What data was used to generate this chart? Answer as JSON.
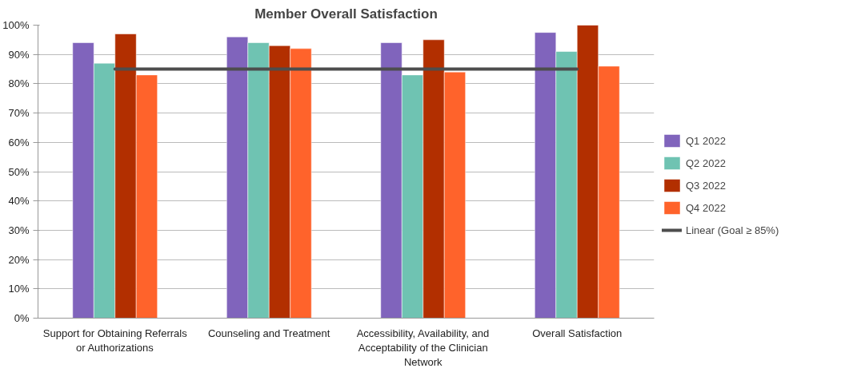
{
  "chart_data": {
    "type": "bar",
    "title": "Member Overall Satisfaction",
    "categories": [
      "Support for Obtaining Referrals or Authorizations",
      "Counseling and Treatment",
      "Accessibility, Availability, and Acceptability of the Clinician Network",
      "Overall Satisfaction"
    ],
    "series": [
      {
        "name": "Q1 2022",
        "color": "#8064bc",
        "values": [
          94,
          96,
          94,
          97.5
        ]
      },
      {
        "name": "Q2 2022",
        "color": "#6fc3b2",
        "values": [
          87,
          94,
          83,
          91
        ]
      },
      {
        "name": "Q3 2022",
        "color": "#b22f00",
        "values": [
          97,
          93,
          95,
          100
        ]
      },
      {
        "name": "Q4 2022",
        "color": "#ff632b",
        "values": [
          83,
          92,
          84,
          86
        ]
      },
      {
        "name": "Linear (Goal ≥ 85%)",
        "type": "line",
        "color": "#4d4d4d",
        "values": [
          85,
          85,
          85,
          85
        ]
      }
    ],
    "ylim": [
      0,
      100
    ],
    "yticks": [
      {
        "value": 0,
        "label": "0%"
      },
      {
        "value": 10,
        "label": "10%"
      },
      {
        "value": 20,
        "label": "20%"
      },
      {
        "value": 30,
        "label": "30%"
      },
      {
        "value": 40,
        "label": "40%"
      },
      {
        "value": 50,
        "label": "50%"
      },
      {
        "value": 60,
        "label": "60%"
      },
      {
        "value": 70,
        "label": "70%"
      },
      {
        "value": 80,
        "label": "80%"
      },
      {
        "value": 90,
        "label": "90%"
      },
      {
        "value": 100,
        "label": "100%"
      }
    ],
    "grid": "y",
    "legend": "right"
  }
}
